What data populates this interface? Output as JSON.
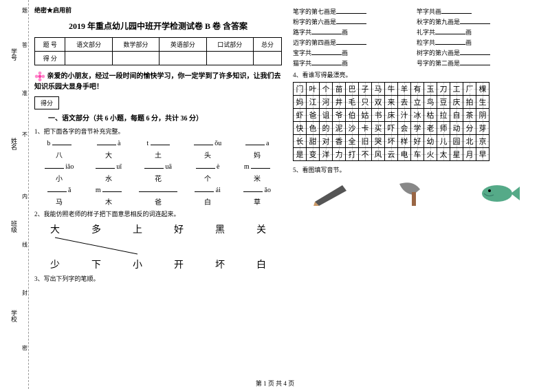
{
  "binding": {
    "labels": [
      "学号",
      "姓名",
      "班级",
      "学校"
    ],
    "marks": [
      "题",
      "答",
      "准",
      "不",
      "内",
      "线",
      "封",
      "密"
    ]
  },
  "secret": "绝密★启用前",
  "title": "2019 年重点幼儿园中班开学检测试卷 B 卷 含答案",
  "score_headers": [
    "题 号",
    "语文部分",
    "数学部分",
    "英语部分",
    "口试部分",
    "总分"
  ],
  "score_row": "得 分",
  "intro": "亲爱的小朋友，经过一段时间的愉快学习，你一定学到了许多知识，让我们去知识乐园大显身手吧！",
  "scorebox": "得分",
  "section1": "一、语文部分（共 6 小题，每题 6 分，共计 36 分）",
  "q1": "1、把下面各字的音节补充完整。",
  "pinyin_rows": [
    {
      "letters": [
        "b",
        "",
        "à",
        "t",
        "",
        "ǒu",
        ""
      ],
      "suffix": "a",
      "chars": [
        "八",
        "大",
        "土",
        "头",
        "妈"
      ]
    },
    {
      "letters": [
        "",
        "iǎo",
        "",
        "uǐ",
        "",
        "uā",
        "è",
        "m"
      ],
      "chars": [
        "小",
        "水",
        "花",
        "个",
        "米"
      ]
    },
    {
      "letters": [
        "",
        "ǎ",
        "m",
        "",
        "",
        "",
        "ái",
        "",
        "ǎo"
      ],
      "chars": [
        "马",
        "木",
        "爸",
        "白",
        "草"
      ]
    }
  ],
  "q2": "2、我能仿照老师的样子把下面意思相反的词连起来。",
  "pair_top": [
    "大",
    "多",
    "上",
    "好",
    "黑",
    "关"
  ],
  "pair_bottom": [
    "少",
    "下",
    "小",
    "开",
    "坏",
    "白"
  ],
  "q3": "3、写出下列字的笔顺。",
  "strokes": [
    [
      "笔字的第七画是________",
      "竿字共画________"
    ],
    [
      "粉字的第六画是________",
      "秋字的第九画是________"
    ],
    [
      "路字共________画",
      "礼字共________画"
    ],
    [
      "迈字的第四画是________",
      "粒字共________画"
    ],
    [
      "宝字共________画",
      "树字的第六画是________"
    ],
    [
      "猫字共________画",
      "号字的第二画是________"
    ]
  ],
  "q4": "4、看谁写得最漂亮。",
  "grid_rows": [
    [
      "门",
      "叶",
      "个",
      "苗",
      "巴",
      "子",
      "马",
      "牛",
      "羊",
      "有",
      "玉",
      "刀",
      "工",
      "厂",
      "棵"
    ],
    [
      "妈",
      "江",
      "河",
      "井",
      "毛",
      "只",
      "双",
      "来",
      "去",
      "立",
      "鸟",
      "豆",
      "庆",
      "拍",
      "生"
    ],
    [
      "虾",
      "爸",
      "诅",
      "爷",
      "伯",
      "姑",
      "书",
      "床",
      "汁",
      "冰",
      "枯",
      "拉",
      "自",
      "茶",
      "阴"
    ],
    [
      "快",
      "色",
      "的",
      "泥",
      "沙",
      "卡",
      "买",
      "吓",
      "会",
      "学",
      "老",
      "师",
      "动",
      "分",
      "芽"
    ],
    [
      "长",
      "甜",
      "对",
      "香",
      "全",
      "旧",
      "哭",
      "坏",
      "样",
      "好",
      "幼",
      "儿",
      "园",
      "北",
      "京"
    ],
    [
      "是",
      "变",
      "洋",
      "力",
      "打",
      "不",
      "风",
      "云",
      "电",
      "车",
      "火",
      "太",
      "星",
      "月",
      "早"
    ]
  ],
  "q5": "5、看图填写音节。",
  "footer": "第 1 页 共 4 页"
}
